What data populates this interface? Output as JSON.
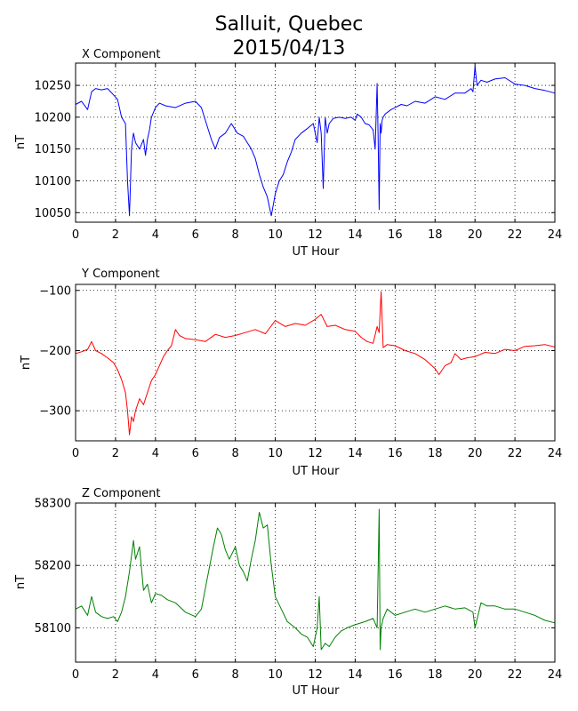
{
  "figure": {
    "title_line1": "Salluit, Quebec",
    "title_line2": "2015/04/13"
  },
  "chart_data": [
    {
      "type": "line",
      "title": "X Component",
      "xlabel": "UT Hour",
      "ylabel": "nT",
      "color": "#0000ff",
      "xlim": [
        0,
        24
      ],
      "ylim": [
        10035,
        10285
      ],
      "xticks": [
        0,
        2,
        4,
        6,
        8,
        10,
        12,
        14,
        16,
        18,
        20,
        22,
        24
      ],
      "yticks": [
        10050,
        10100,
        10150,
        10200,
        10250
      ],
      "grid": true,
      "series": [
        {
          "x": [
            0,
            0.3,
            0.6,
            0.8,
            1.0,
            1.3,
            1.6,
            1.9,
            2.1,
            2.3,
            2.5,
            2.6,
            2.7,
            2.8,
            2.9,
            3.0,
            3.2,
            3.4,
            3.5,
            3.6,
            3.7,
            3.8,
            4.0,
            4.2,
            4.5,
            5.0,
            5.5,
            6.0,
            6.3,
            6.6,
            6.8,
            7.0,
            7.2,
            7.5,
            7.8,
            8.1,
            8.4,
            8.6,
            8.8,
            9.0,
            9.2,
            9.4,
            9.6,
            9.7,
            9.8,
            10.0,
            10.2,
            10.4,
            10.6,
            10.8,
            11.0,
            11.3,
            11.6,
            11.9,
            12.1,
            12.2,
            12.3,
            12.4,
            12.5,
            12.6,
            12.7,
            12.9,
            13.2,
            13.5,
            13.8,
            14.0,
            14.1,
            14.3,
            14.5,
            14.7,
            14.9,
            15.0,
            15.1,
            15.15,
            15.2,
            15.25,
            15.3,
            15.35,
            15.4,
            15.5,
            15.8,
            16.0,
            16.3,
            16.6,
            17.0,
            17.5,
            18.0,
            18.5,
            19.0,
            19.5,
            19.8,
            19.9,
            20.0,
            20.1,
            20.3,
            20.6,
            21.0,
            21.5,
            22.0,
            22.5,
            23.0,
            23.5,
            24.0
          ],
          "y": [
            10220,
            10225,
            10212,
            10240,
            10245,
            10243,
            10245,
            10235,
            10228,
            10200,
            10190,
            10100,
            10045,
            10150,
            10175,
            10160,
            10150,
            10165,
            10140,
            10165,
            10180,
            10200,
            10215,
            10222,
            10218,
            10215,
            10222,
            10225,
            10215,
            10185,
            10165,
            10150,
            10168,
            10175,
            10190,
            10175,
            10170,
            10160,
            10150,
            10135,
            10110,
            10090,
            10075,
            10060,
            10045,
            10080,
            10100,
            10110,
            10130,
            10145,
            10165,
            10175,
            10182,
            10190,
            10160,
            10200,
            10175,
            10088,
            10200,
            10175,
            10190,
            10198,
            10200,
            10198,
            10200,
            10195,
            10205,
            10200,
            10190,
            10188,
            10180,
            10150,
            10253,
            10170,
            10055,
            10190,
            10175,
            10195,
            10200,
            10205,
            10212,
            10215,
            10220,
            10218,
            10225,
            10222,
            10232,
            10228,
            10238,
            10238,
            10245,
            10240,
            10280,
            10250,
            10258,
            10255,
            10260,
            10262,
            10252,
            10250,
            10245,
            10242,
            10238
          ]
        }
      ]
    },
    {
      "type": "line",
      "title": "Y Component",
      "xlabel": "UT Hour",
      "ylabel": "nT",
      "color": "#ff0000",
      "xlim": [
        0,
        24
      ],
      "ylim": [
        -350,
        -90
      ],
      "xticks": [
        0,
        2,
        4,
        6,
        8,
        10,
        12,
        14,
        16,
        18,
        20,
        22,
        24
      ],
      "yticks": [
        -300,
        -200,
        -100
      ],
      "grid": true,
      "series": [
        {
          "x": [
            0,
            0.3,
            0.6,
            0.8,
            1.0,
            1.3,
            1.6,
            1.9,
            2.1,
            2.3,
            2.5,
            2.6,
            2.7,
            2.8,
            2.9,
            3.0,
            3.2,
            3.4,
            3.6,
            3.8,
            4.0,
            4.2,
            4.4,
            4.6,
            4.8,
            5.0,
            5.2,
            5.5,
            6.0,
            6.5,
            7.0,
            7.5,
            8.0,
            8.5,
            9.0,
            9.5,
            10.0,
            10.5,
            11.0,
            11.5,
            12.0,
            12.3,
            12.6,
            13.0,
            13.5,
            14.0,
            14.3,
            14.6,
            14.9,
            15.1,
            15.2,
            15.3,
            15.4,
            15.6,
            16.0,
            16.5,
            17.0,
            17.5,
            18.0,
            18.2,
            18.5,
            18.8,
            19.0,
            19.3,
            19.6,
            20.0,
            20.5,
            21.0,
            21.5,
            22.0,
            22.5,
            23.0,
            23.5,
            24.0
          ],
          "y": [
            -205,
            -202,
            -198,
            -185,
            -200,
            -205,
            -212,
            -220,
            -232,
            -248,
            -270,
            -300,
            -340,
            -310,
            -318,
            -300,
            -280,
            -290,
            -270,
            -250,
            -240,
            -225,
            -210,
            -200,
            -192,
            -165,
            -175,
            -180,
            -182,
            -185,
            -173,
            -178,
            -175,
            -170,
            -165,
            -172,
            -150,
            -160,
            -155,
            -158,
            -148,
            -140,
            -160,
            -158,
            -165,
            -168,
            -178,
            -185,
            -188,
            -160,
            -170,
            -102,
            -195,
            -190,
            -192,
            -200,
            -205,
            -215,
            -230,
            -240,
            -225,
            -220,
            -205,
            -215,
            -212,
            -210,
            -203,
            -205,
            -198,
            -200,
            -193,
            -192,
            -190,
            -194
          ]
        }
      ]
    },
    {
      "type": "line",
      "title": "Z Component",
      "xlabel": "UT Hour",
      "ylabel": "nT",
      "color": "#008000",
      "xlim": [
        0,
        24
      ],
      "ylim": [
        58045,
        58300
      ],
      "xticks": [
        0,
        2,
        4,
        6,
        8,
        10,
        12,
        14,
        16,
        18,
        20,
        22,
        24
      ],
      "yticks": [
        58100,
        58200,
        58300
      ],
      "grid": true,
      "series": [
        {
          "x": [
            0,
            0.3,
            0.6,
            0.8,
            1.0,
            1.3,
            1.6,
            1.9,
            2.1,
            2.3,
            2.5,
            2.7,
            2.9,
            3.0,
            3.2,
            3.4,
            3.6,
            3.8,
            4.0,
            4.3,
            4.6,
            5.0,
            5.5,
            6.0,
            6.3,
            6.6,
            6.9,
            7.1,
            7.3,
            7.5,
            7.7,
            8.0,
            8.2,
            8.4,
            8.6,
            8.8,
            9.0,
            9.2,
            9.4,
            9.6,
            9.8,
            10.0,
            10.3,
            10.6,
            11.0,
            11.3,
            11.6,
            11.9,
            12.1,
            12.2,
            12.3,
            12.5,
            12.7,
            13.0,
            13.3,
            13.6,
            14.0,
            14.5,
            14.9,
            15.1,
            15.2,
            15.25,
            15.3,
            15.4,
            15.6,
            16.0,
            16.5,
            17.0,
            17.5,
            18.0,
            18.5,
            19.0,
            19.5,
            19.9,
            20.0,
            20.3,
            20.6,
            21.0,
            21.5,
            22.0,
            22.5,
            23.0,
            23.5,
            24.0
          ],
          "y": [
            58130,
            58135,
            58120,
            58150,
            58125,
            58118,
            58115,
            58118,
            58110,
            58125,
            58150,
            58190,
            58240,
            58210,
            58230,
            58160,
            58170,
            58140,
            58155,
            58152,
            58145,
            58140,
            58125,
            58118,
            58130,
            58180,
            58230,
            58260,
            58250,
            58225,
            58210,
            58230,
            58200,
            58190,
            58175,
            58210,
            58240,
            58285,
            58260,
            58265,
            58200,
            58150,
            58130,
            58110,
            58100,
            58090,
            58085,
            58070,
            58100,
            58150,
            58065,
            58075,
            58070,
            58085,
            58095,
            58100,
            58105,
            58110,
            58115,
            58100,
            58290,
            58065,
            58100,
            58115,
            58130,
            58120,
            58125,
            58130,
            58125,
            58130,
            58135,
            58130,
            58132,
            58125,
            58100,
            58140,
            58135,
            58135,
            58130,
            58130,
            58125,
            58120,
            58112,
            58108
          ]
        }
      ]
    }
  ]
}
